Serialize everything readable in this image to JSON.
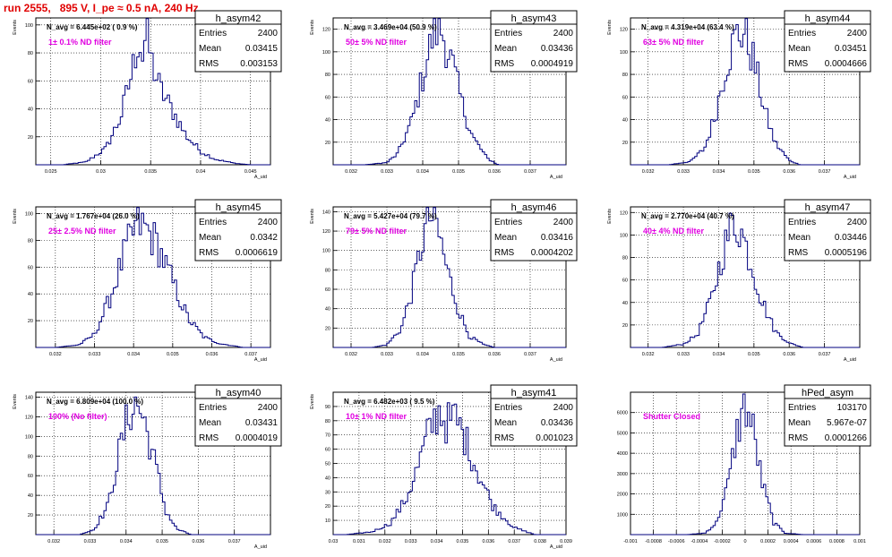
{
  "run_title": "run 2555,   895 V, I_pe ≈ 0.5 nA, 240 Hz",
  "colors": {
    "hist": "#00007f",
    "title": "#e00000",
    "annotation": "#e000e0",
    "grid": "#000000"
  },
  "stats_labels": {
    "entries": "Entries",
    "mean": "Mean",
    "rms": "RMS"
  },
  "chart_data": [
    {
      "type": "histogram",
      "name": "h_asym42",
      "entries": "2400",
      "mean": "0.03415",
      "rms": "0.003153",
      "navg": "N_avg = 6.445e+02 ( 0.9 %)",
      "annotation": "1± 0.1% ND filter",
      "ylabel": "Events",
      "xlabel": "A_uid",
      "grid": true,
      "xlim": [
        0.0235,
        0.047
      ],
      "xticks": [
        "0.025",
        "0.03",
        "0.035",
        "0.04",
        "0.045"
      ],
      "xtick_vals": [
        0.025,
        0.03,
        0.035,
        0.04,
        0.045
      ],
      "ylim": [
        0,
        105
      ],
      "yticks": [
        "20",
        "40",
        "60",
        "80",
        "100"
      ],
      "ytick_vals": [
        20,
        40,
        60,
        80,
        100
      ],
      "peak": {
        "x": [
          0.0262,
          0.0285,
          0.0305,
          0.032,
          0.0332,
          0.0338,
          0.0342,
          0.0346,
          0.035,
          0.036,
          0.0372,
          0.0385,
          0.04,
          0.0415,
          0.0435,
          0.045
        ],
        "y": [
          0,
          2,
          12,
          35,
          70,
          95,
          80,
          100,
          78,
          55,
          40,
          22,
          10,
          4,
          1,
          0
        ]
      }
    },
    {
      "type": "histogram",
      "name": "h_asym43",
      "entries": "2400",
      "mean": "0.03436",
      "rms": "0.0004919",
      "navg": "N_avg = 3.469e+04 (50.9 %)",
      "annotation": "50± 5% ND filter",
      "ylabel": "Events",
      "xlabel": "A_uid",
      "grid": true,
      "xlim": [
        0.0315,
        0.038
      ],
      "xticks": [
        "0.032",
        "0.033",
        "0.034",
        "0.035",
        "0.036",
        "0.037"
      ],
      "xtick_vals": [
        0.032,
        0.033,
        0.034,
        0.035,
        0.036,
        0.037
      ],
      "ylim": [
        0,
        130
      ],
      "yticks": [
        "20",
        "40",
        "60",
        "80",
        "100",
        "120"
      ],
      "ytick_vals": [
        20,
        40,
        60,
        80,
        100,
        120
      ],
      "peak": {
        "x": [
          0.0324,
          0.033,
          0.0333,
          0.0337,
          0.034,
          0.0343,
          0.0345,
          0.0348,
          0.0351,
          0.0354,
          0.0358,
          0.0361
        ],
        "y": [
          0,
          2,
          10,
          40,
          80,
          120,
          125,
          95,
          55,
          25,
          6,
          0
        ]
      }
    },
    {
      "type": "histogram",
      "name": "h_asym44",
      "entries": "2400",
      "mean": "0.03451",
      "rms": "0.0004666",
      "navg": "N_avg = 4.319e+04 (63.4 %)",
      "annotation": "63± 5% ND filter",
      "ylabel": "Events",
      "xlabel": "A_uid",
      "grid": true,
      "xlim": [
        0.0315,
        0.038
      ],
      "xticks": [
        "0.032",
        "0.033",
        "0.034",
        "0.035",
        "0.036",
        "0.037"
      ],
      "xtick_vals": [
        0.032,
        0.033,
        0.034,
        0.035,
        0.036,
        0.037
      ],
      "ylim": [
        0,
        130
      ],
      "yticks": [
        "20",
        "40",
        "60",
        "80",
        "100",
        "120"
      ],
      "ytick_vals": [
        20,
        40,
        60,
        80,
        100,
        120
      ],
      "peak": {
        "x": [
          0.0326,
          0.0332,
          0.0336,
          0.0339,
          0.0342,
          0.0345,
          0.0347,
          0.035,
          0.0353,
          0.0356,
          0.036,
          0.0363
        ],
        "y": [
          0,
          3,
          15,
          45,
          90,
          118,
          122,
          95,
          50,
          20,
          4,
          0
        ]
      }
    },
    {
      "type": "histogram",
      "name": "h_asym45",
      "entries": "2400",
      "mean": "0.0342",
      "rms": "0.0006619",
      "navg": "N_avg = 1.767e+04 (26.0 %)",
      "annotation": "25± 2.5% ND filter",
      "ylabel": "Events",
      "xlabel": "A_uid",
      "grid": true,
      "xlim": [
        0.0315,
        0.0375
      ],
      "xticks": [
        "0.032",
        "0.033",
        "0.034",
        "0.035",
        "0.036",
        "0.037"
      ],
      "xtick_vals": [
        0.032,
        0.033,
        0.034,
        0.035,
        0.036,
        0.037
      ],
      "ylim": [
        0,
        105
      ],
      "yticks": [
        "20",
        "40",
        "60",
        "80",
        "100"
      ],
      "ytick_vals": [
        20,
        40,
        60,
        80,
        100
      ],
      "peak": {
        "x": [
          0.032,
          0.0326,
          0.033,
          0.0334,
          0.0338,
          0.0341,
          0.0343,
          0.0346,
          0.035,
          0.0354,
          0.0358,
          0.0362,
          0.0368
        ],
        "y": [
          0,
          2,
          10,
          38,
          75,
          95,
          92,
          80,
          50,
          22,
          8,
          3,
          0
        ]
      }
    },
    {
      "type": "histogram",
      "name": "h_asym46",
      "entries": "2400",
      "mean": "0.03416",
      "rms": "0.0004202",
      "navg": "N_avg = 5.427e+04 (79.7 %)",
      "annotation": "79± 5% ND filter",
      "ylabel": "Events",
      "xlabel": "A_uid",
      "grid": true,
      "xlim": [
        0.0315,
        0.038
      ],
      "xticks": [
        "0.032",
        "0.033",
        "0.034",
        "0.035",
        "0.036",
        "0.037"
      ],
      "xtick_vals": [
        0.032,
        0.033,
        0.034,
        0.035,
        0.036,
        0.037
      ],
      "ylim": [
        0,
        145
      ],
      "yticks": [
        "20",
        "40",
        "60",
        "80",
        "100",
        "120",
        "140"
      ],
      "ytick_vals": [
        20,
        40,
        60,
        80,
        100,
        120,
        140
      ],
      "peak": {
        "x": [
          0.0326,
          0.033,
          0.0334,
          0.0337,
          0.034,
          0.0342,
          0.0344,
          0.0347,
          0.035,
          0.0353,
          0.0357,
          0.036
        ],
        "y": [
          0,
          3,
          20,
          60,
          115,
          140,
          128,
          80,
          40,
          12,
          3,
          0
        ]
      }
    },
    {
      "type": "histogram",
      "name": "h_asym47",
      "entries": "2400",
      "mean": "0.03446",
      "rms": "0.0005196",
      "navg": "N_avg = 2.770e+04 (40.7 %)",
      "annotation": "40± 4% ND filter",
      "ylabel": "Events",
      "xlabel": "A_uid",
      "grid": true,
      "xlim": [
        0.0315,
        0.038
      ],
      "xticks": [
        "0.032",
        "0.033",
        "0.034",
        "0.035",
        "0.036",
        "0.037"
      ],
      "xtick_vals": [
        0.032,
        0.033,
        0.034,
        0.035,
        0.036,
        0.037
      ],
      "ylim": [
        0,
        125
      ],
      "yticks": [
        "20",
        "40",
        "60",
        "80",
        "100",
        "120"
      ],
      "ytick_vals": [
        20,
        40,
        60,
        80,
        100,
        120
      ],
      "peak": {
        "x": [
          0.0324,
          0.033,
          0.0334,
          0.0338,
          0.0341,
          0.0344,
          0.0346,
          0.0349,
          0.0352,
          0.0356,
          0.036,
          0.0364
        ],
        "y": [
          0,
          3,
          12,
          45,
          85,
          115,
          110,
          80,
          45,
          15,
          4,
          0
        ]
      }
    },
    {
      "type": "histogram",
      "name": "h_asym40",
      "entries": "2400",
      "mean": "0.03431",
      "rms": "0.0004019",
      "navg": "N_avg = 6.809e+04 (100.0 %)",
      "annotation": "100% (No filter)",
      "ylabel": "Events",
      "xlabel": "A_uid",
      "grid": true,
      "xlim": [
        0.0315,
        0.038
      ],
      "xticks": [
        "0.032",
        "0.033",
        "0.034",
        "0.035",
        "0.036",
        "0.037"
      ],
      "xtick_vals": [
        0.032,
        0.033,
        0.034,
        0.035,
        0.036,
        0.037
      ],
      "ylim": [
        0,
        145
      ],
      "yticks": [
        "20",
        "40",
        "60",
        "80",
        "100",
        "120",
        "140"
      ],
      "ytick_vals": [
        20,
        40,
        60,
        80,
        100,
        120,
        140
      ],
      "peak": {
        "x": [
          0.0327,
          0.0331,
          0.0335,
          0.0338,
          0.0341,
          0.0343,
          0.0345,
          0.0348,
          0.0351,
          0.0354,
          0.0358
        ],
        "y": [
          0,
          5,
          30,
          85,
          130,
          138,
          120,
          75,
          25,
          6,
          0
        ]
      }
    },
    {
      "type": "histogram",
      "name": "h_asym41",
      "entries": "2400",
      "mean": "0.03436",
      "rms": "0.001023",
      "navg": "N_avg = 6.482e+03 ( 9.5 %)",
      "annotation": "10± 1% ND filter",
      "ylabel": "Events",
      "xlabel": "A_uid",
      "grid": true,
      "xlim": [
        0.03,
        0.039
      ],
      "xticks": [
        "0.03",
        "0.031",
        "0.032",
        "0.033",
        "0.034",
        "0.035",
        "0.036",
        "0.037",
        "0.038",
        "0.039"
      ],
      "xtick_vals": [
        0.03,
        0.031,
        0.032,
        0.033,
        0.034,
        0.035,
        0.036,
        0.037,
        0.038,
        0.039
      ],
      "ylim": [
        0,
        100
      ],
      "yticks": [
        "10",
        "20",
        "30",
        "40",
        "50",
        "60",
        "70",
        "80",
        "90"
      ],
      "ytick_vals": [
        10,
        20,
        30,
        40,
        50,
        60,
        70,
        80,
        90
      ],
      "peak": {
        "x": [
          0.0305,
          0.0315,
          0.0322,
          0.0328,
          0.0333,
          0.0337,
          0.0341,
          0.0344,
          0.0347,
          0.0351,
          0.0356,
          0.0362,
          0.037,
          0.0378
        ],
        "y": [
          0,
          2,
          8,
          25,
          50,
          75,
          90,
          80,
          85,
          70,
          45,
          20,
          5,
          0
        ]
      }
    },
    {
      "type": "histogram",
      "name": "hPed_asym",
      "entries": "103170",
      "mean": "5.967e-07",
      "rms": "0.0001266",
      "navg": "",
      "annotation": "Shutter Closed",
      "ylabel": "",
      "xlabel": "",
      "grid": true,
      "xlim": [
        -0.001,
        0.001
      ],
      "xticks": [
        "-0.001",
        "-0.0008",
        "-0.0006",
        "-0.0004",
        "-0.0002",
        "0",
        "0.0002",
        "0.0004",
        "0.0006",
        "0.0008",
        "0.001"
      ],
      "xtick_vals": [
        -0.001,
        -0.0008,
        -0.0006,
        -0.0004,
        -0.0002,
        0,
        0.0002,
        0.0004,
        0.0006,
        0.0008,
        0.001
      ],
      "ylim": [
        0,
        7000
      ],
      "yticks": [
        "1000",
        "2000",
        "3000",
        "4000",
        "5000",
        "6000"
      ],
      "ytick_vals": [
        1000,
        2000,
        3000,
        4000,
        5000,
        6000
      ],
      "peak": {
        "x": [
          -0.0005,
          -0.00035,
          -0.00025,
          -0.00015,
          -7e-05,
          0.0,
          7e-05,
          0.00015,
          0.00025,
          0.00035,
          0.0005
        ],
        "y": [
          0,
          80,
          600,
          2500,
          5200,
          6600,
          5300,
          2600,
          600,
          80,
          0
        ]
      }
    }
  ]
}
